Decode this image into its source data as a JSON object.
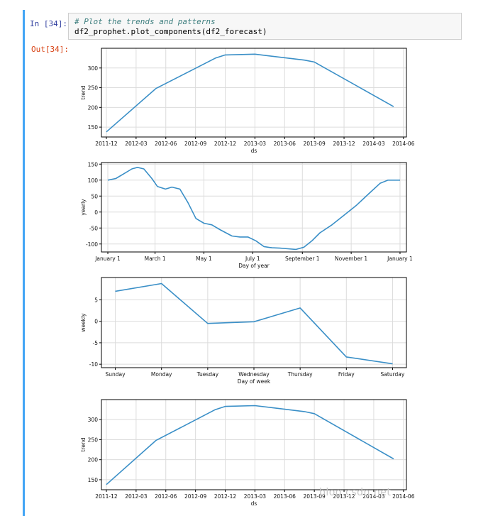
{
  "cell": {
    "in_prompt": "In [34]:",
    "out_prompt": "Out[34]:",
    "code_comment": "# Plot the trends and patterns",
    "code_line": "df2_prophet.plot_components(df2_forecast)"
  },
  "watermark": "https://blog.csdn.net/...",
  "colors": {
    "line": "#3a8fc7",
    "grid": "#dcdcdc",
    "axes": "#000000",
    "prompt_in": "#303f9f",
    "prompt_out": "#d84315"
  },
  "chart_data": [
    {
      "type": "line",
      "xlabel": "ds",
      "ylabel": "trend",
      "x": [
        "2011-12",
        "2012-05",
        "2012-11",
        "2012-12",
        "2013-03",
        "2013-08",
        "2013-09",
        "2014-05"
      ],
      "y": [
        138,
        248,
        325,
        333,
        335,
        320,
        315,
        202
      ],
      "ylim": [
        125,
        350
      ],
      "xticks": [
        "2011-12",
        "2012-03",
        "2012-06",
        "2012-09",
        "2012-12",
        "2013-03",
        "2013-06",
        "2013-09",
        "2013-12",
        "2014-03",
        "2014-06"
      ],
      "yticks": [
        150,
        200,
        250,
        300
      ],
      "grid": true
    },
    {
      "type": "line",
      "xlabel": "Day of year",
      "ylabel": "yearly",
      "x": [
        0,
        10,
        20,
        30,
        37,
        45,
        55,
        62,
        72,
        80,
        90,
        100,
        110,
        120,
        130,
        140,
        155,
        165,
        175,
        185,
        195,
        205,
        215,
        225,
        235,
        245,
        255,
        265,
        280,
        295,
        310,
        325,
        340,
        350,
        358,
        365
      ],
      "y": [
        100,
        105,
        120,
        135,
        140,
        135,
        105,
        80,
        72,
        78,
        72,
        30,
        -20,
        -35,
        -40,
        -55,
        -75,
        -78,
        -78,
        -90,
        -108,
        -112,
        -113,
        -115,
        -117,
        -110,
        -90,
        -65,
        -40,
        -10,
        20,
        55,
        90,
        100,
        100,
        100
      ],
      "ylim": [
        -125,
        155
      ],
      "xticks": [
        "January 1",
        "March 1",
        "May 1",
        "July 1",
        "September 1",
        "November 1",
        "January 1"
      ],
      "yticks": [
        -100,
        -50,
        0,
        50,
        100,
        150
      ],
      "grid": true
    },
    {
      "type": "line",
      "xlabel": "Day of week",
      "ylabel": "weekly",
      "categories": [
        "Sunday",
        "Monday",
        "Tuesday",
        "Wednesday",
        "Thursday",
        "Friday",
        "Saturday"
      ],
      "values": [
        7,
        8.8,
        -0.5,
        -0.1,
        3.1,
        -8.3,
        -9.9
      ],
      "ylim": [
        -10.8,
        10.2
      ],
      "yticks": [
        -10,
        -5,
        0,
        5
      ],
      "grid": true
    },
    {
      "type": "line",
      "xlabel": "ds",
      "ylabel": "trend",
      "x": [
        "2011-12",
        "2012-05",
        "2012-11",
        "2012-12",
        "2013-03",
        "2013-08",
        "2013-09",
        "2014-05"
      ],
      "y": [
        138,
        248,
        325,
        333,
        335,
        320,
        315,
        202
      ],
      "ylim": [
        125,
        350
      ],
      "xticks": [
        "2011-12",
        "2012-03",
        "2012-06",
        "2012-09",
        "2012-12",
        "2013-03",
        "2013-06",
        "2013-09",
        "2013-12",
        "2014-03",
        "2014-06"
      ],
      "yticks": [
        150,
        200,
        250,
        300
      ],
      "grid": true
    }
  ]
}
